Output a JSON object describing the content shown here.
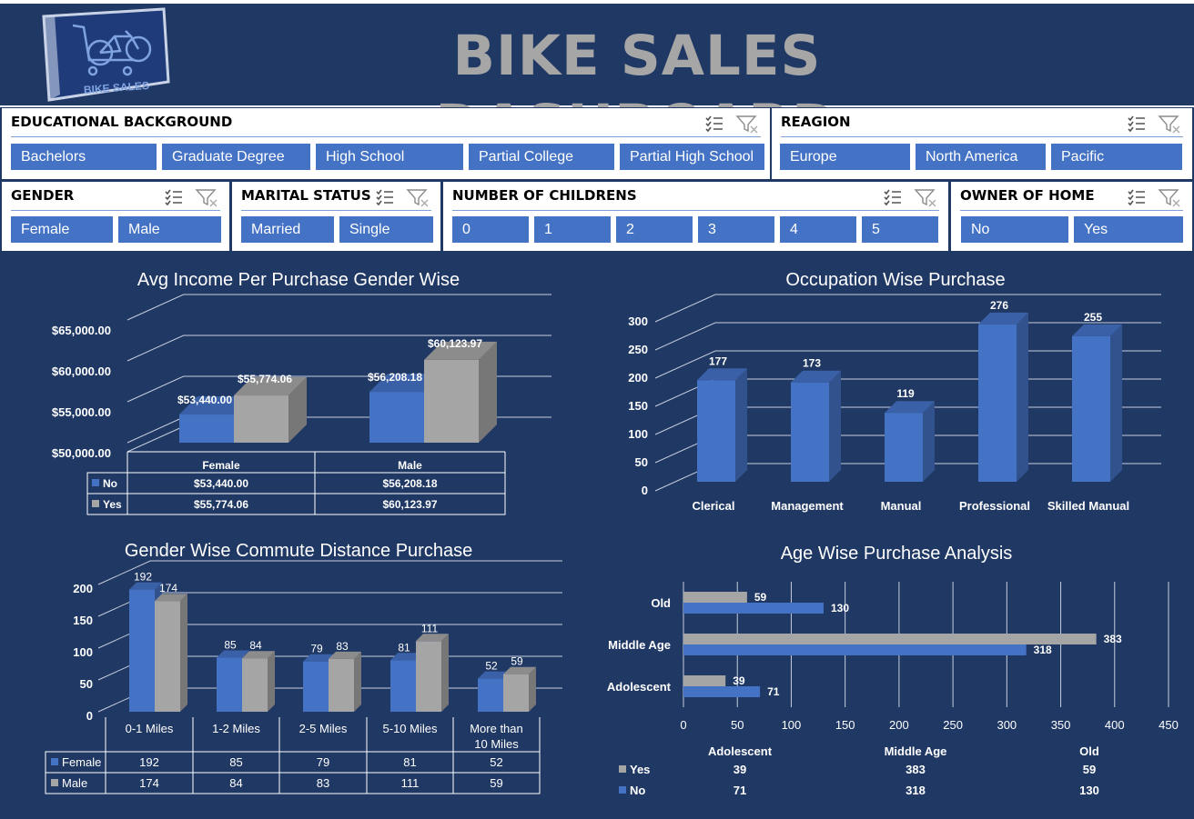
{
  "header": {
    "title": "BIKE SALES DASHBOARD",
    "logo_text": "BIKE SALES"
  },
  "slicers": {
    "education": {
      "title": "EDUCATIONAL BACKGROUND",
      "items": [
        "Bachelors",
        "Graduate Degree",
        "High School",
        "Partial College",
        "Partial High School"
      ]
    },
    "region": {
      "title": "REAGION",
      "items": [
        "Europe",
        "North America",
        "Pacific"
      ]
    },
    "gender": {
      "title": "GENDER",
      "items": [
        "Female",
        "Male"
      ]
    },
    "marital": {
      "title": "MARITAL STATUS",
      "items": [
        "Married",
        "Single"
      ]
    },
    "children": {
      "title": "NUMBER OF CHILDRENS",
      "items": [
        "0",
        "1",
        "2",
        "3",
        "4",
        "5"
      ]
    },
    "home": {
      "title": "OWNER OF HOME",
      "items": [
        "No",
        "Yes"
      ]
    }
  },
  "colors": {
    "background": "#203864",
    "blue": "#4472c4",
    "gray": "#a5a5a5",
    "title_gray": "#a6a6a6"
  },
  "icons": {
    "multi_select": "multi-select-icon",
    "clear_filter": "clear-filter-icon"
  },
  "chart_data": [
    {
      "id": "income",
      "type": "bar",
      "title": "Avg Income Per Purchase Gender Wise",
      "categories": [
        "Female",
        "Male"
      ],
      "series": [
        {
          "name": "No",
          "values": [
            53440.0,
            56208.18
          ],
          "labels": [
            "$53,440.00",
            "$56,208.18"
          ]
        },
        {
          "name": "Yes",
          "values": [
            55774.06,
            60123.97
          ],
          "labels": [
            "$55,774.06",
            "$60,123.97"
          ]
        }
      ],
      "yticks": [
        "$50,000.00",
        "$55,000.00",
        "$60,000.00",
        "$65,000.00"
      ],
      "ylim": [
        50000,
        65000
      ],
      "data_table": true
    },
    {
      "id": "occupation",
      "type": "bar",
      "title": "Occupation Wise Purchase",
      "categories": [
        "Clerical",
        "Management",
        "Manual",
        "Professional",
        "Skilled Manual"
      ],
      "values": [
        177,
        173,
        119,
        276,
        255
      ],
      "yticks": [
        "0",
        "50",
        "100",
        "150",
        "200",
        "250",
        "300"
      ],
      "ylim": [
        0,
        300
      ]
    },
    {
      "id": "commute",
      "type": "bar",
      "title": "Gender Wise Commute Distance Purchase",
      "categories": [
        "0-1 Miles",
        "1-2 Miles",
        "2-5 Miles",
        "5-10 Miles",
        "More than 10 Miles"
      ],
      "series": [
        {
          "name": "Female",
          "values": [
            192,
            85,
            79,
            81,
            52
          ]
        },
        {
          "name": "Male",
          "values": [
            174,
            84,
            83,
            111,
            59
          ]
        }
      ],
      "yticks": [
        "0",
        "50",
        "100",
        "150",
        "200"
      ],
      "ylim": [
        0,
        200
      ],
      "data_table": true
    },
    {
      "id": "age",
      "type": "bar",
      "title": "Age Wise Purchase Analysis",
      "categories": [
        "Adolescent",
        "Middle Age",
        "Old"
      ],
      "series": [
        {
          "name": "Yes",
          "values": [
            39,
            383,
            59
          ]
        },
        {
          "name": "No",
          "values": [
            71,
            318,
            130
          ]
        }
      ],
      "xticks": [
        "0",
        "50",
        "100",
        "150",
        "200",
        "250",
        "300",
        "350",
        "400",
        "450"
      ],
      "xlim": [
        0,
        450
      ],
      "orientation": "horizontal",
      "data_table": true
    }
  ]
}
